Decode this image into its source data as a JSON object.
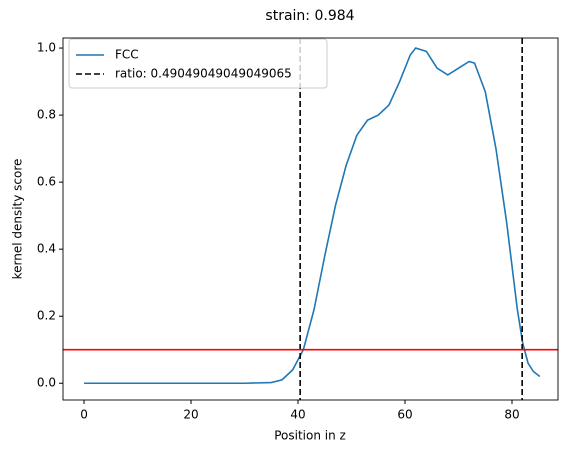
{
  "chart_data": {
    "type": "line",
    "title": "strain: 0.984",
    "xlabel": "Position in z",
    "ylabel": "kernel density score",
    "x": [
      0,
      10,
      20,
      30,
      35,
      37,
      39,
      41,
      43,
      45,
      47,
      49,
      51,
      53,
      55,
      57,
      59,
      61,
      62,
      64,
      66,
      68,
      70,
      72,
      73,
      75,
      77,
      79,
      81,
      82,
      83,
      84,
      85.2
    ],
    "series": [
      {
        "name": "FCC",
        "color": "#1f77b4",
        "values": [
          0,
          0,
          0,
          0,
          0.002,
          0.01,
          0.04,
          0.1,
          0.22,
          0.38,
          0.53,
          0.65,
          0.74,
          0.785,
          0.8,
          0.83,
          0.9,
          0.98,
          1.0,
          0.99,
          0.94,
          0.92,
          0.94,
          0.96,
          0.955,
          0.87,
          0.7,
          0.48,
          0.22,
          0.12,
          0.06,
          0.035,
          0.02
        ]
      }
    ],
    "vlines": {
      "name": "ratio: 0.49049049049049065",
      "color": "#000000",
      "values": [
        40.4,
        81.9
      ]
    },
    "hline": {
      "value": 0.1,
      "color": "#ff0000"
    },
    "xlim": [
      -3.93,
      88.6
    ],
    "ylim": [
      -0.05,
      1.03
    ],
    "xticks": [
      0,
      20,
      40,
      60,
      80
    ],
    "yticks": [
      {
        "value": 0,
        "label": "0.0"
      },
      {
        "value": 0.2,
        "label": "0.2"
      },
      {
        "value": 0.4,
        "label": "0.4"
      },
      {
        "value": 0.6,
        "label": "0.6"
      },
      {
        "value": 0.8,
        "label": "0.8"
      },
      {
        "value": 1.0,
        "label": "1.0"
      }
    ],
    "legend": "upper left"
  }
}
